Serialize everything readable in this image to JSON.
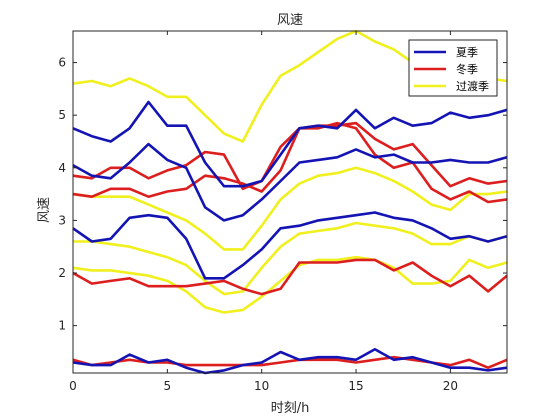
{
  "chart_data": {
    "type": "line",
    "title": "风速",
    "xlabel": "时刻/h",
    "ylabel": "风速",
    "xlim": [
      0,
      23
    ],
    "ylim": [
      0.1,
      6.6
    ],
    "xticks": [
      0,
      5,
      10,
      15,
      20
    ],
    "yticks": [
      1,
      2,
      3,
      4,
      5,
      6
    ],
    "grid": false,
    "legend_position": "top-right",
    "x": [
      0,
      1,
      2,
      3,
      4,
      5,
      6,
      7,
      8,
      9,
      10,
      11,
      12,
      13,
      14,
      15,
      16,
      17,
      18,
      19,
      20,
      21,
      22,
      23
    ],
    "legend": [
      {
        "name": "夏季",
        "color": "#1414b4"
      },
      {
        "name": "冬季",
        "color": "#dc1e1e"
      },
      {
        "name": "过渡季",
        "color": "#f0f01e"
      }
    ],
    "series": [
      {
        "group": "过渡季",
        "color": "#f0f01e",
        "values": [
          5.6,
          5.65,
          5.55,
          5.7,
          5.55,
          5.35,
          5.35,
          5.0,
          4.65,
          4.5,
          5.2,
          5.75,
          5.95,
          6.2,
          6.45,
          6.6,
          6.4,
          6.25,
          6.0,
          5.85,
          5.75,
          5.7,
          5.7,
          5.65
        ]
      },
      {
        "group": "过渡季",
        "color": "#f0f01e",
        "values": [
          3.5,
          3.45,
          3.45,
          3.45,
          3.3,
          3.15,
          3.0,
          2.75,
          2.45,
          2.45,
          2.9,
          3.4,
          3.7,
          3.85,
          3.9,
          4.0,
          3.9,
          3.75,
          3.55,
          3.3,
          3.2,
          3.5,
          3.5,
          3.55
        ]
      },
      {
        "group": "过渡季",
        "color": "#f0f01e",
        "values": [
          2.6,
          2.6,
          2.55,
          2.5,
          2.4,
          2.3,
          2.15,
          1.85,
          1.6,
          1.65,
          2.1,
          2.5,
          2.75,
          2.8,
          2.85,
          2.95,
          2.9,
          2.85,
          2.75,
          2.55,
          2.55,
          2.7,
          2.6,
          2.7
        ]
      },
      {
        "group": "过渡季",
        "color": "#f0f01e",
        "values": [
          2.1,
          2.05,
          2.05,
          2.0,
          1.95,
          1.85,
          1.65,
          1.35,
          1.25,
          1.3,
          1.55,
          1.85,
          2.15,
          2.25,
          2.25,
          2.3,
          2.25,
          2.1,
          1.8,
          1.8,
          1.85,
          2.25,
          2.1,
          2.2
        ]
      },
      {
        "group": "冬季",
        "color": "#dc1e1e",
        "values": [
          3.85,
          3.8,
          4.0,
          4.0,
          3.8,
          3.95,
          4.05,
          4.3,
          4.25,
          3.6,
          3.75,
          4.4,
          4.75,
          4.8,
          4.8,
          4.85,
          4.55,
          4.35,
          4.45,
          4.05,
          3.65,
          3.8,
          3.7,
          3.75
        ]
      },
      {
        "group": "冬季",
        "color": "#dc1e1e",
        "values": [
          3.5,
          3.45,
          3.6,
          3.6,
          3.45,
          3.55,
          3.6,
          3.85,
          3.8,
          3.7,
          3.55,
          3.95,
          4.75,
          4.75,
          4.85,
          4.75,
          4.25,
          4.0,
          4.1,
          3.6,
          3.4,
          3.55,
          3.35,
          3.4
        ]
      },
      {
        "group": "冬季",
        "color": "#dc1e1e",
        "values": [
          2.0,
          1.8,
          1.85,
          1.9,
          1.75,
          1.75,
          1.75,
          1.8,
          1.85,
          1.7,
          1.6,
          1.7,
          2.2,
          2.2,
          2.2,
          2.25,
          2.25,
          2.05,
          2.2,
          1.95,
          1.75,
          1.95,
          1.65,
          1.95
        ]
      },
      {
        "group": "冬季",
        "color": "#dc1e1e",
        "values": [
          0.35,
          0.25,
          0.3,
          0.35,
          0.3,
          0.3,
          0.25,
          0.25,
          0.25,
          0.25,
          0.25,
          0.3,
          0.35,
          0.35,
          0.35,
          0.3,
          0.35,
          0.4,
          0.35,
          0.3,
          0.25,
          0.35,
          0.2,
          0.35
        ]
      },
      {
        "group": "夏季",
        "color": "#1414b4",
        "values": [
          4.75,
          4.6,
          4.5,
          4.75,
          5.25,
          4.8,
          4.8,
          4.1,
          3.65,
          3.65,
          3.75,
          4.25,
          4.75,
          4.8,
          4.75,
          5.1,
          4.75,
          4.95,
          4.8,
          4.85,
          5.05,
          4.95,
          5.0,
          5.1
        ]
      },
      {
        "group": "夏季",
        "color": "#1414b4",
        "values": [
          4.05,
          3.85,
          3.8,
          4.1,
          4.45,
          4.15,
          4.0,
          3.25,
          3.0,
          3.1,
          3.4,
          3.75,
          4.1,
          4.15,
          4.2,
          4.35,
          4.2,
          4.25,
          4.1,
          4.1,
          4.15,
          4.1,
          4.1,
          4.2
        ]
      },
      {
        "group": "夏季",
        "color": "#1414b4",
        "values": [
          2.85,
          2.6,
          2.65,
          3.05,
          3.1,
          3.05,
          2.65,
          1.9,
          1.9,
          2.15,
          2.45,
          2.85,
          2.9,
          3.0,
          3.05,
          3.1,
          3.15,
          3.05,
          3.0,
          2.85,
          2.65,
          2.7,
          2.6,
          2.7
        ]
      },
      {
        "group": "夏季",
        "color": "#1414b4",
        "values": [
          0.3,
          0.25,
          0.25,
          0.45,
          0.3,
          0.35,
          0.2,
          0.1,
          0.15,
          0.25,
          0.3,
          0.5,
          0.35,
          0.4,
          0.4,
          0.35,
          0.55,
          0.35,
          0.4,
          0.3,
          0.2,
          0.2,
          0.15,
          0.2
        ]
      }
    ]
  }
}
